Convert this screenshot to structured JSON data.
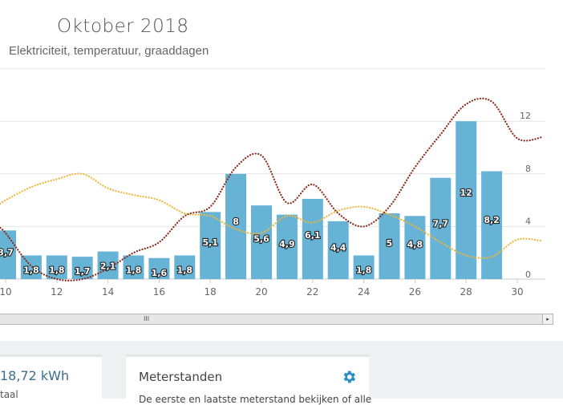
{
  "header": {
    "title": "Oktober 2018",
    "subtitle": "Elektriciteit, temperatuur, graaddagen"
  },
  "chart_data": {
    "type": "bar",
    "title": "Oktober 2018",
    "subtitle": "Elektriciteit, temperatuur, graaddagen",
    "x_ticks": [
      10,
      12,
      14,
      16,
      18,
      20,
      22,
      24,
      26,
      28,
      30
    ],
    "y_ticks": [
      0,
      4,
      8,
      12
    ],
    "ylim": [
      0,
      16
    ],
    "grid": true,
    "colors": {
      "bars": "#67b3d5",
      "temperature": "#f0b53a",
      "degree_days": "#8b2a1a"
    },
    "bars": {
      "days": [
        10,
        11,
        12,
        13,
        14,
        15,
        16,
        17,
        18,
        19,
        20,
        21,
        22,
        23,
        24,
        25,
        26,
        27,
        28,
        29
      ],
      "values": [
        3.7,
        1.8,
        1.8,
        1.7,
        2.1,
        1.8,
        1.6,
        1.8,
        5.1,
        8,
        5.6,
        4.9,
        6.1,
        4.4,
        1.8,
        5,
        4.8,
        7.7,
        12,
        8.2
      ],
      "labels": [
        "3,7",
        "1,8",
        "1,8",
        "1,7",
        "2,1",
        "1,8",
        "1,6",
        "1,8",
        "5,1",
        "8",
        "5,6",
        "4,9",
        "6,1",
        "4,4",
        "1,8",
        "5",
        "4,8",
        "7,7",
        "12",
        "8,2"
      ]
    },
    "lines": [
      {
        "key": "temperature",
        "style": "dotted",
        "days": [
          9.7,
          10,
          11,
          12,
          13,
          14,
          15,
          16,
          17,
          18,
          19,
          20,
          21,
          22,
          23,
          24,
          25,
          26,
          27,
          28,
          29,
          30,
          31
        ],
        "values": [
          5.6,
          6.0,
          7.0,
          7.6,
          8.0,
          6.9,
          6.4,
          6.0,
          5.0,
          4.8,
          3.8,
          3.5,
          4.8,
          4.3,
          5.2,
          5.5,
          4.9,
          4.0,
          2.8,
          1.8,
          1.7,
          3.0,
          2.9
        ]
      },
      {
        "key": "degree_days",
        "style": "dotted",
        "days": [
          9.7,
          10,
          11,
          12,
          13,
          14,
          15,
          16,
          17,
          18,
          19,
          20,
          21,
          22,
          23,
          24,
          25,
          26,
          27,
          28,
          29,
          30,
          31
        ],
        "values": [
          4.0,
          3.5,
          1.0,
          0,
          0,
          0.8,
          2.0,
          2.8,
          4.8,
          5.5,
          8.5,
          9.4,
          5.8,
          7.2,
          5.0,
          4.0,
          5.5,
          8.5,
          11.0,
          13.3,
          13.5,
          10.7,
          10.8
        ]
      }
    ]
  },
  "scrollbar": {
    "grip": "III",
    "right_arrow": "▸"
  },
  "cards": [
    {
      "value": "18,72 kWh",
      "label": "taal"
    },
    {
      "title": "Meterstanden",
      "description": "De eerste en laatste meterstand bekijken of alle",
      "icon": "gear-icon"
    }
  ]
}
